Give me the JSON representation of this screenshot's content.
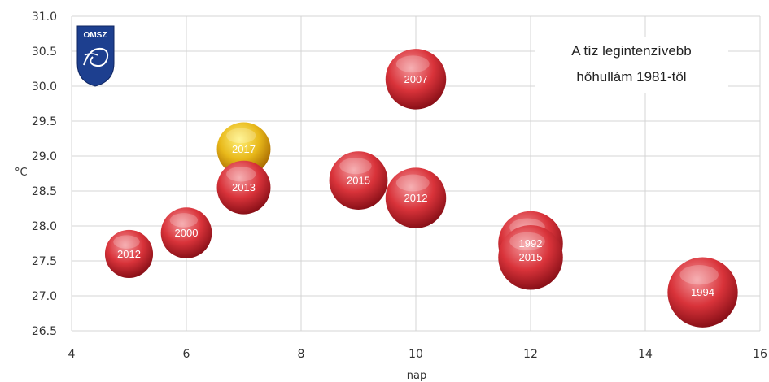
{
  "chart_data": {
    "type": "scatter",
    "subtype": "bubble",
    "title": [
      "A tíz legintenzívebb",
      "hőhullám 1981-től"
    ],
    "xlabel": "nap",
    "ylabel": "°C",
    "xlim": [
      4,
      16
    ],
    "ylim": [
      26.5,
      31.0
    ],
    "xticks": [
      "4",
      "6",
      "8",
      "10",
      "12",
      "14",
      "16"
    ],
    "yticks": [
      "26.5",
      "27.0",
      "27.5",
      "28.0",
      "28.5",
      "29.0",
      "29.5",
      "30.0",
      "30.5",
      "31.0"
    ],
    "grid": true,
    "logo_text": "OMSZ",
    "points": [
      {
        "label": "2012",
        "x": 5,
        "y": 27.6,
        "size": 5,
        "color": "#d9333a"
      },
      {
        "label": "2000",
        "x": 6,
        "y": 27.9,
        "size": 6,
        "color": "#d9333a"
      },
      {
        "label": "2017",
        "x": 7,
        "y": 29.1,
        "size": 7,
        "color": "#e8b81a"
      },
      {
        "label": "2013",
        "x": 7,
        "y": 28.55,
        "size": 7,
        "color": "#d9333a"
      },
      {
        "label": "2015",
        "x": 9,
        "y": 28.65,
        "size": 9,
        "color": "#d9333a"
      },
      {
        "label": "2007",
        "x": 10,
        "y": 30.1,
        "size": 10,
        "color": "#d9333a"
      },
      {
        "label": "2012",
        "x": 10,
        "y": 28.4,
        "size": 10,
        "color": "#d9333a"
      },
      {
        "label": "1992",
        "x": 12,
        "y": 27.75,
        "size": 12,
        "color": "#d9333a"
      },
      {
        "label": "2015",
        "x": 12,
        "y": 27.55,
        "size": 12,
        "color": "#d9333a"
      },
      {
        "label": "1994",
        "x": 15,
        "y": 27.05,
        "size": 15,
        "color": "#d9333a"
      }
    ],
    "colors": {
      "hot": "#d9333a",
      "highlight": "#e8b81a",
      "logo": "#1d3f8f"
    }
  }
}
